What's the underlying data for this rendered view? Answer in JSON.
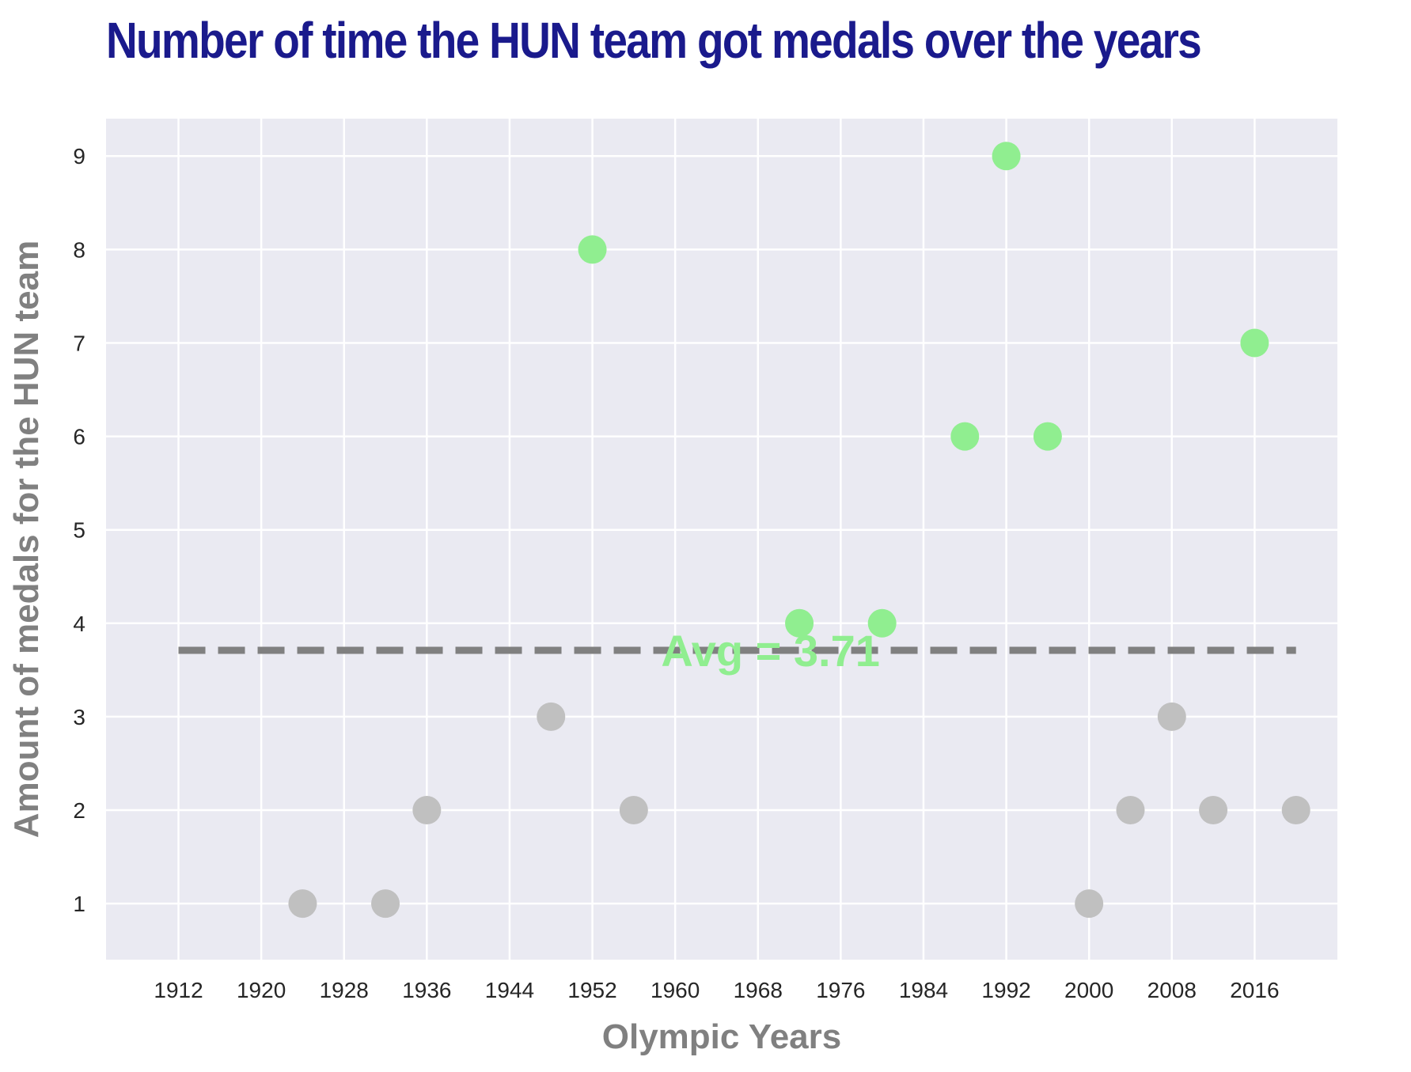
{
  "chart_data": {
    "type": "scatter",
    "title": "Number of time the HUN team got medals over the years",
    "xlabel": "Olympic Years",
    "ylabel": "Amount of medals for the HUN team",
    "xlim": [
      1905,
      2024
    ],
    "ylim": [
      0.4,
      9.4
    ],
    "xticks": [
      1912,
      1920,
      1928,
      1936,
      1944,
      1952,
      1960,
      1968,
      1976,
      1984,
      1992,
      2000,
      2008,
      2016
    ],
    "yticks": [
      1,
      2,
      3,
      4,
      5,
      6,
      7,
      8,
      9
    ],
    "grid": true,
    "background_color": "#eaeaf2",
    "grid_color": "#ffffff",
    "points": [
      {
        "x": 1924,
        "y": 1
      },
      {
        "x": 1932,
        "y": 1
      },
      {
        "x": 1936,
        "y": 2
      },
      {
        "x": 1948,
        "y": 3
      },
      {
        "x": 1952,
        "y": 8
      },
      {
        "x": 1956,
        "y": 2
      },
      {
        "x": 1972,
        "y": 4
      },
      {
        "x": 1980,
        "y": 4
      },
      {
        "x": 1988,
        "y": 6
      },
      {
        "x": 1992,
        "y": 9
      },
      {
        "x": 1996,
        "y": 6
      },
      {
        "x": 2000,
        "y": 1
      },
      {
        "x": 2004,
        "y": 2
      },
      {
        "x": 2008,
        "y": 3
      },
      {
        "x": 2012,
        "y": 2
      },
      {
        "x": 2016,
        "y": 7
      },
      {
        "x": 2020,
        "y": 2
      }
    ],
    "above_avg_color": "#90ee90",
    "below_avg_color": "#c0c0c0",
    "average": {
      "value": 3.71,
      "x_range": [
        1912,
        2020
      ],
      "label": "Avg = 3.71",
      "line_color": "#808080",
      "label_color": "#90ee90",
      "line_style": "dashed"
    }
  }
}
